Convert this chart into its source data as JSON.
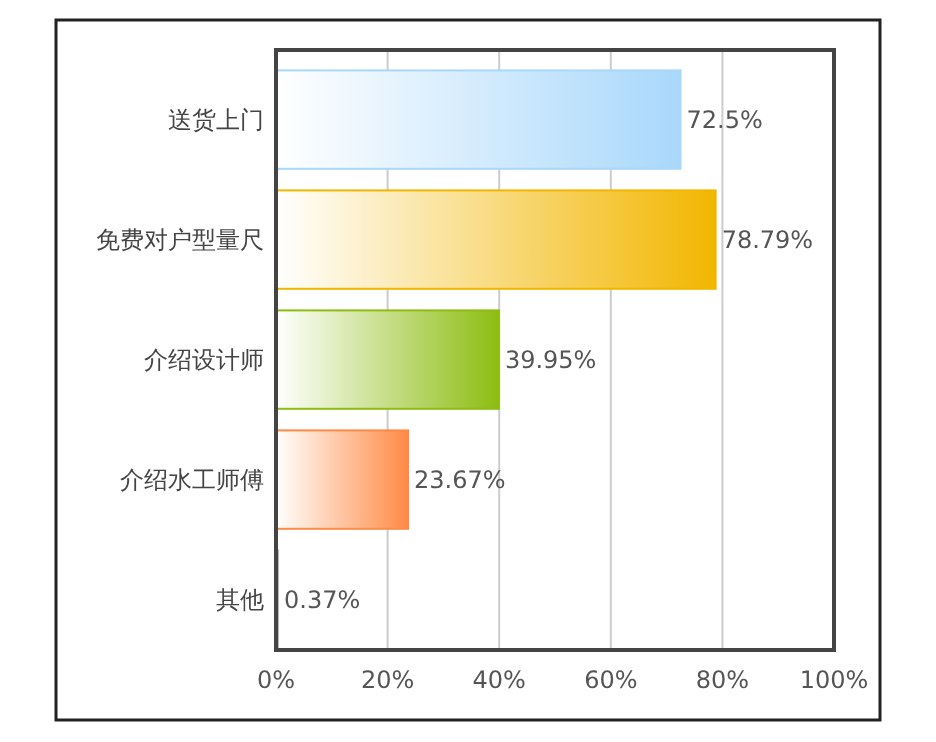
{
  "chart_data": {
    "type": "bar",
    "orientation": "horizontal",
    "categories": [
      "送货上门",
      "免费对户型量尺",
      "介绍设计师",
      "介绍水工师傅",
      "其他"
    ],
    "values": [
      72.5,
      78.79,
      39.95,
      23.67,
      0.37
    ],
    "colors": [
      "#a9d8fb",
      "#f2b600",
      "#8dbd12",
      "#ff8a45",
      "#bbbbbb"
    ],
    "value_labels": [
      "72.5%",
      "78.79%",
      "39.95%",
      "23.67%",
      "0.37%"
    ],
    "xlim": [
      0,
      100
    ],
    "xticks": [
      {
        "value": 0,
        "label": "0%"
      },
      {
        "value": 20,
        "label": "20%"
      },
      {
        "value": 40,
        "label": "40%"
      },
      {
        "value": 60,
        "label": "60%"
      },
      {
        "value": 80,
        "label": "80%"
      },
      {
        "value": 100,
        "label": "100%"
      }
    ],
    "grid": "x"
  }
}
